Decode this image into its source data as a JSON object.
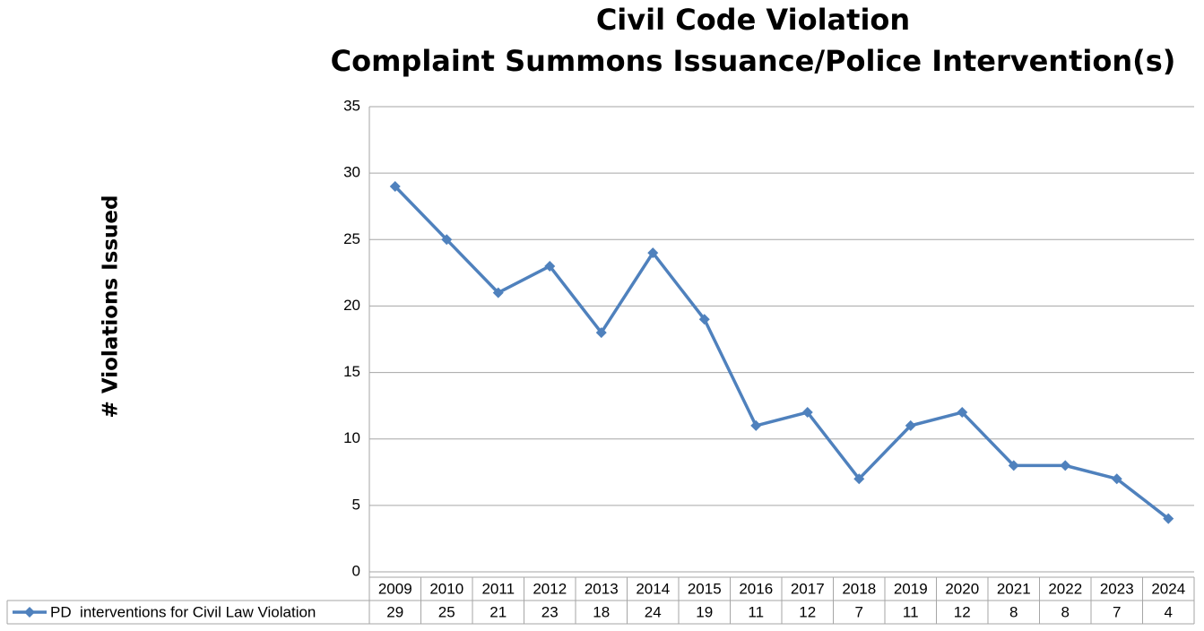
{
  "chart_data": {
    "type": "line",
    "title": [
      "Civil Code Violation",
      "Complaint Summons Issuance/Police Intervention(s)"
    ],
    "y_label": "# Violations Issued",
    "categories": [
      "2009",
      "2010",
      "2011",
      "2012",
      "2013",
      "2014",
      "2015",
      "2016",
      "2017",
      "2018",
      "2019",
      "2020",
      "2021",
      "2022",
      "2023",
      "2024"
    ],
    "series": [
      {
        "name": "PD  interventions for Civil Law Violation",
        "color": "#4f81bd",
        "values": [
          29,
          25,
          21,
          23,
          18,
          24,
          19,
          11,
          12,
          7,
          11,
          12,
          8,
          8,
          7,
          4
        ]
      }
    ],
    "ylim": [
      0,
      35
    ],
    "yticks": [
      0,
      5,
      10,
      15,
      20,
      25,
      30,
      35
    ],
    "grid": true,
    "legend": "data table"
  }
}
